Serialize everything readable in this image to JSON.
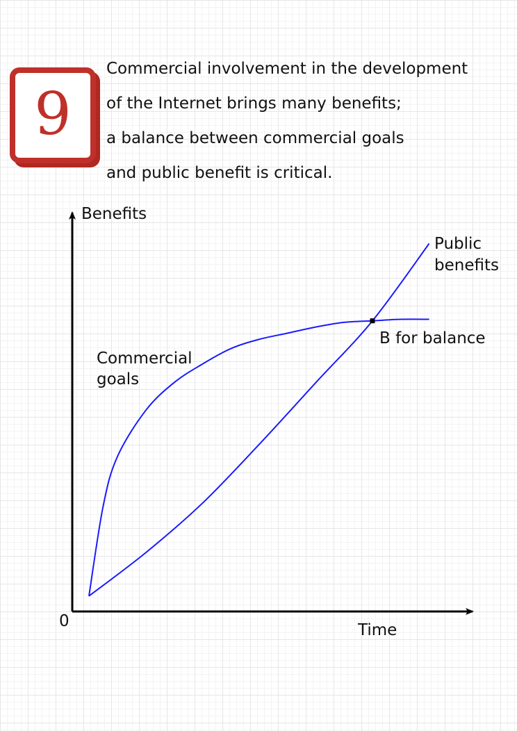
{
  "badge": {
    "number": "9"
  },
  "caption": {
    "lines": [
      "Commercial involvement in the development",
      "of the Internet brings many benefits;",
      "a balance between commercial goals",
      "and public benefit is critical."
    ]
  },
  "chart_data": {
    "type": "line",
    "title": "",
    "xlabel": "Time",
    "ylabel": "Benefits",
    "origin_label": "0",
    "grid": true,
    "colors": {
      "series": "#1a1aff",
      "axis": "#000000",
      "badge": "#c0302a"
    },
    "series": [
      {
        "name": "Commercial goals",
        "label_lines": [
          "Commercial",
          "goals"
        ],
        "kind": "saturating",
        "x": [
          0.0,
          0.05,
          0.1,
          0.2,
          0.3,
          0.4,
          0.5,
          0.6,
          0.7,
          0.8,
          0.9,
          1.0,
          1.1,
          1.2
        ],
        "y": [
          0.05,
          0.34,
          0.5,
          0.65,
          0.74,
          0.8,
          0.85,
          0.88,
          0.9,
          0.92,
          0.935,
          0.94,
          0.945,
          0.945
        ]
      },
      {
        "name": "Public benefits",
        "label_lines": [
          "Public",
          "benefits"
        ],
        "kind": "rising",
        "x": [
          0.0,
          0.2,
          0.4,
          0.6,
          0.8,
          1.0,
          1.2
        ],
        "y": [
          0.05,
          0.19,
          0.35,
          0.54,
          0.74,
          0.94,
          1.19
        ]
      }
    ],
    "annotation": {
      "label": "B for balance",
      "x": 1.0,
      "y": 0.94
    }
  }
}
